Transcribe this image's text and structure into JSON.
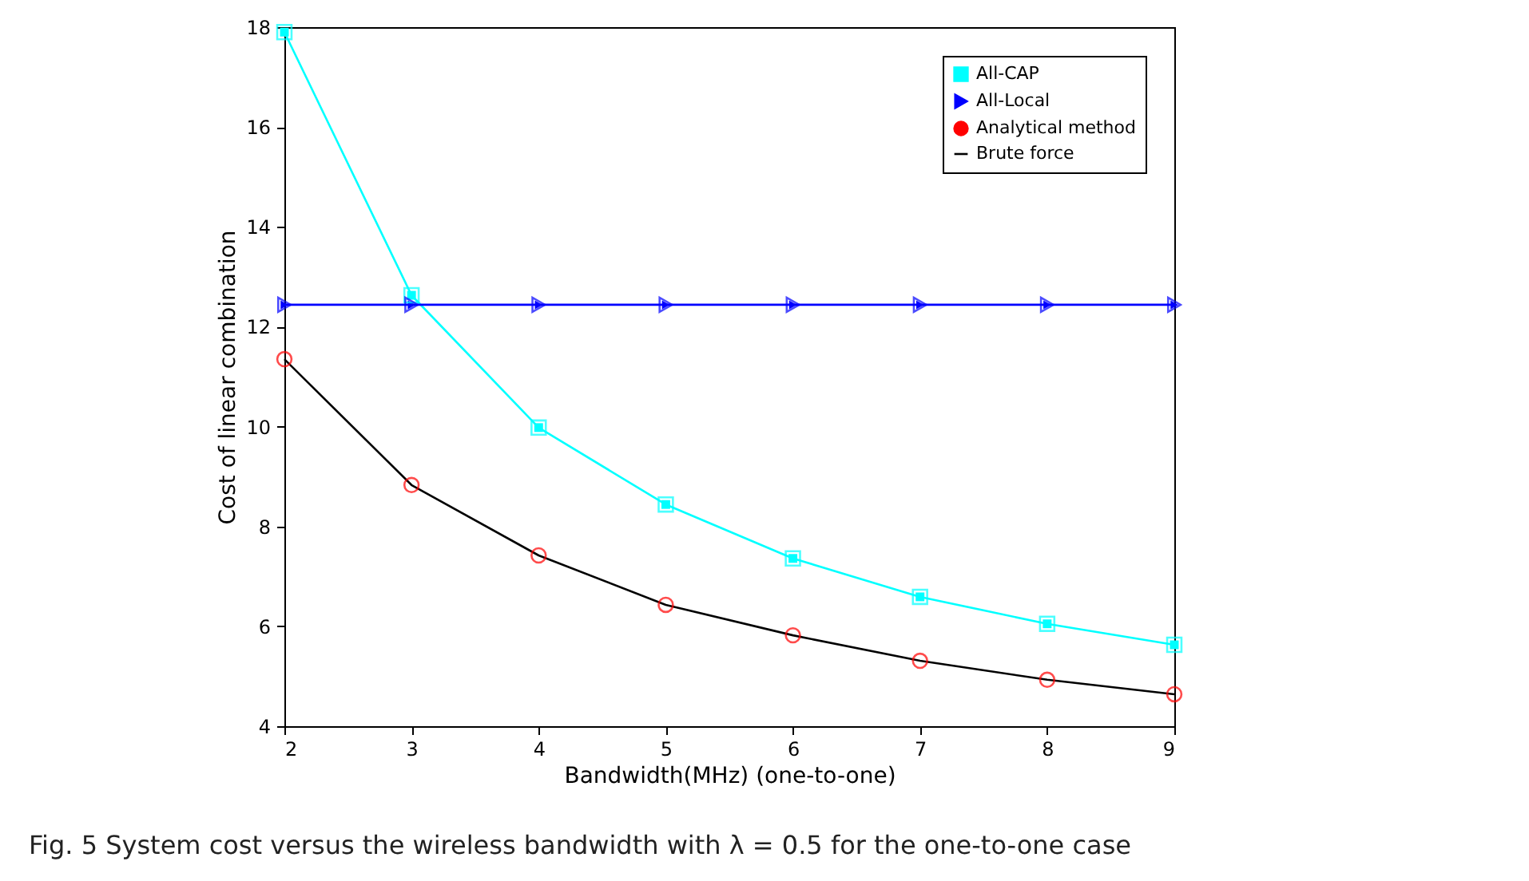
{
  "chart_data": {
    "type": "line",
    "xlabel": "Bandwidth(MHz) (one-to-one)",
    "ylabel": "Cost of linear combination",
    "x": [
      2,
      3,
      4,
      5,
      6,
      7,
      8,
      9
    ],
    "series": [
      {
        "name": "All-CAP",
        "color": "#00ffff",
        "marker": "square",
        "values": [
          17.9,
          12.63,
          9.98,
          8.44,
          7.36,
          6.59,
          6.05,
          5.63
        ]
      },
      {
        "name": "All-Local",
        "color": "#0000ff",
        "marker": "triangle",
        "values": [
          12.44,
          12.44,
          12.44,
          12.44,
          12.44,
          12.44,
          12.44,
          12.44
        ]
      },
      {
        "name": "Analytical method",
        "type": "scatter",
        "color": "#ff0000",
        "marker": "circle",
        "values": [
          11.35,
          8.83,
          7.42,
          6.43,
          5.82,
          5.31,
          4.93,
          4.64
        ]
      },
      {
        "name": "Brute force",
        "color": "#000000",
        "marker": "none",
        "values": [
          11.35,
          8.83,
          7.42,
          6.43,
          5.82,
          5.31,
          4.93,
          4.64
        ]
      }
    ],
    "xlim": [
      2,
      9
    ],
    "xticks": [
      2,
      3,
      4,
      5,
      6,
      7,
      8,
      9
    ],
    "ylim": [
      4,
      18
    ],
    "yticks": [
      4,
      6,
      8,
      10,
      12,
      14,
      16,
      18
    ],
    "legend": "top right",
    "annotations": [
      "Fig. 5 System cost versus the wireless bandwidth with λ = 0.5 for the one-to-one case"
    ]
  }
}
